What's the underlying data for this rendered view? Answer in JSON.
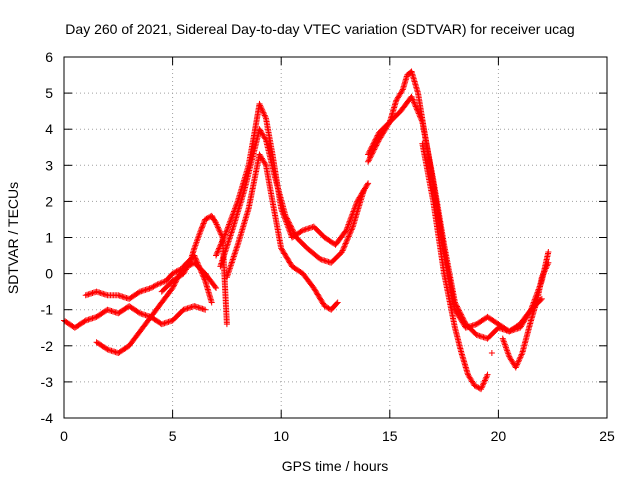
{
  "chart_data": {
    "type": "scatter",
    "title": "Day 260 of 2021, Sidereal Day-to-day VTEC variation (SDTVAR) for receiver ucag",
    "xlabel": "GPS time / hours",
    "ylabel": "SDTVAR / TECUs",
    "xlim": [
      0,
      25
    ],
    "ylim": [
      -4,
      6
    ],
    "xticks": [
      "0",
      "5",
      "10",
      "15",
      "20",
      "25"
    ],
    "yticks": [
      "-4",
      "-3",
      "-2",
      "-1",
      "0",
      "1",
      "2",
      "3",
      "4",
      "5",
      "6"
    ],
    "grid": true,
    "marker": "+",
    "series_color": "#ff0000",
    "series": [
      {
        "x": [
          0.0,
          0.5,
          1.0,
          1.5,
          2.0,
          2.5,
          3.0,
          3.5,
          4.0,
          4.5,
          5.0,
          5.5,
          6.0,
          6.5
        ],
        "y": [
          -1.3,
          -1.5,
          -1.3,
          -1.2,
          -1.0,
          -1.1,
          -0.9,
          -1.1,
          -1.2,
          -1.4,
          -1.3,
          -1.0,
          -0.9,
          -1.0
        ]
      },
      {
        "x": [
          1.0,
          1.5,
          2.0,
          2.5,
          3.0,
          3.5,
          4.0,
          4.3,
          4.7,
          5.0,
          5.3,
          5.7,
          6.0,
          6.5,
          7.0
        ],
        "y": [
          -0.6,
          -0.5,
          -0.6,
          -0.6,
          -0.7,
          -0.5,
          -0.4,
          -0.3,
          -0.2,
          0.0,
          0.1,
          0.2,
          0.3,
          0.0,
          -0.4
        ]
      },
      {
        "x": [
          1.5,
          2.0,
          2.5,
          3.0,
          3.5,
          4.0,
          4.5,
          5.0,
          5.5,
          6.0,
          6.5,
          6.8
        ],
        "y": [
          -1.9,
          -2.1,
          -2.2,
          -2.0,
          -1.6,
          -1.2,
          -0.8,
          -0.4,
          0.2,
          0.5,
          -0.2,
          -0.8
        ]
      },
      {
        "x": [
          4.5,
          5.0,
          5.5,
          5.8,
          6.0,
          6.3,
          6.5,
          6.8,
          7.0,
          7.3,
          7.5
        ],
        "y": [
          -0.5,
          -0.2,
          0.0,
          0.3,
          0.7,
          1.2,
          1.5,
          1.6,
          1.4,
          1.0,
          -1.4
        ]
      },
      {
        "x": [
          7.0,
          7.5,
          8.0,
          8.5,
          8.8,
          9.0,
          9.3,
          9.6,
          10.0,
          10.5,
          11.0,
          11.5,
          12.0,
          12.5,
          13.0,
          13.5,
          14.0
        ],
        "y": [
          0.5,
          1.2,
          2.0,
          3.0,
          4.0,
          4.7,
          4.3,
          3.3,
          1.8,
          1.0,
          1.2,
          1.3,
          1.0,
          0.8,
          1.2,
          2.0,
          2.5
        ]
      },
      {
        "x": [
          7.5,
          8.0,
          8.5,
          9.0,
          9.3,
          9.6,
          10.0,
          10.5,
          11.0,
          11.5,
          12.0,
          12.3,
          12.6
        ],
        "y": [
          -0.1,
          0.8,
          1.8,
          3.3,
          3.0,
          2.0,
          0.7,
          0.2,
          0.0,
          -0.4,
          -0.9,
          -1.0,
          -0.8
        ]
      },
      {
        "x": [
          7.2,
          7.8,
          8.3,
          8.8,
          9.0,
          9.3,
          9.7,
          10.2,
          10.7,
          11.2,
          11.8,
          12.3,
          12.8,
          13.3,
          13.8
        ],
        "y": [
          0.2,
          1.3,
          2.3,
          3.5,
          4.0,
          3.7,
          2.7,
          1.6,
          1.0,
          0.7,
          0.4,
          0.3,
          0.6,
          1.3,
          2.3
        ]
      },
      {
        "x": [
          14.0,
          14.5,
          15.0,
          15.3,
          15.6,
          15.8,
          16.0,
          16.3,
          16.6,
          17.0,
          17.5,
          18.0,
          18.5,
          19.0,
          19.5,
          20.0,
          20.5,
          21.0,
          21.5,
          22.0,
          22.3
        ],
        "y": [
          3.1,
          3.7,
          4.2,
          4.8,
          5.1,
          5.5,
          5.6,
          5.0,
          3.9,
          2.5,
          0.6,
          -1.0,
          -1.5,
          -1.4,
          -1.2,
          -1.4,
          -1.6,
          -1.5,
          -1.0,
          -0.2,
          0.6
        ]
      },
      {
        "x": [
          14.0,
          14.5,
          15.0,
          15.5,
          16.0,
          16.5,
          17.0,
          17.5,
          18.0,
          18.5,
          19.0,
          19.5,
          20.0,
          20.5,
          21.0,
          21.5,
          22.0
        ],
        "y": [
          3.3,
          3.9,
          4.2,
          4.5,
          4.9,
          4.2,
          2.6,
          0.8,
          -0.8,
          -1.4,
          -1.7,
          -1.8,
          -1.5,
          -1.6,
          -1.4,
          -1.0,
          -0.7
        ]
      },
      {
        "x": [
          16.5,
          17.0,
          17.5,
          18.0,
          18.3,
          18.6,
          18.9,
          19.2,
          19.5
        ],
        "y": [
          3.6,
          2.0,
          0.0,
          -1.5,
          -2.2,
          -2.8,
          -3.1,
          -3.2,
          -2.8
        ]
      },
      {
        "x": [
          20.2,
          20.5,
          20.8,
          21.1,
          21.5,
          21.8,
          22.0,
          22.3
        ],
        "y": [
          -1.8,
          -2.3,
          -2.6,
          -2.2,
          -1.3,
          -0.7,
          -0.1,
          0.3
        ]
      },
      {
        "x": [
          19.7
        ],
        "y": [
          -2.2
        ]
      }
    ]
  }
}
